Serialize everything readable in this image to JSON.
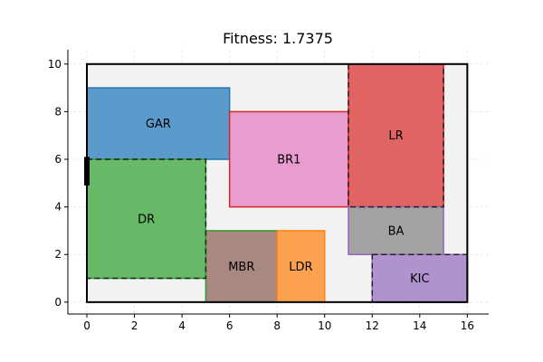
{
  "title": "Fitness: 1.7375",
  "chart_data": {
    "type": "floor-plan",
    "xlim": [
      -0.8,
      16.9
    ],
    "ylim": [
      -0.5,
      10.6
    ],
    "x_ticks": [
      0,
      2,
      4,
      6,
      8,
      10,
      12,
      14,
      16
    ],
    "y_ticks": [
      0,
      2,
      4,
      6,
      8,
      10
    ],
    "grid": true,
    "boundary": {
      "x": 0,
      "y": 0,
      "w": 16,
      "h": 10,
      "fill": "#f2f2f2"
    },
    "rooms": [
      {
        "label": "GAR",
        "x": 0,
        "y": 6,
        "w": 6,
        "h": 3,
        "fill": "#5a9bcc",
        "stroke": "#1f77b4"
      },
      {
        "label": "BR1",
        "x": 6,
        "y": 4,
        "w": 5,
        "h": 4,
        "fill": "#e89ccf",
        "stroke": "#d62728"
      },
      {
        "label": "LR",
        "x": 11,
        "y": 4,
        "w": 4,
        "h": 6,
        "fill": "#e06464",
        "stroke": "#d62728"
      },
      {
        "label": "DR",
        "x": 0,
        "y": 1,
        "w": 5,
        "h": 5,
        "fill": "#67b967",
        "stroke": "#2ca02c"
      },
      {
        "label": "BA",
        "x": 11,
        "y": 2,
        "w": 4,
        "h": 2,
        "fill": "#a3a3a3",
        "stroke": "#9467bd"
      },
      {
        "label": "MBR",
        "x": 5,
        "y": 0,
        "w": 3,
        "h": 3,
        "fill": "#a88880",
        "stroke": "#2ca02c"
      },
      {
        "label": "LDR",
        "x": 8,
        "y": 0,
        "w": 2,
        "h": 3,
        "fill": "#fba14f",
        "stroke": "#ff7f0e"
      },
      {
        "label": "KIC",
        "x": 12,
        "y": 0,
        "w": 4,
        "h": 2,
        "fill": "#b093ce",
        "stroke": "#9467bd"
      }
    ],
    "dashed_outlines": [
      {
        "x": 0,
        "y": 1,
        "w": 5,
        "h": 5
      },
      {
        "x": 11,
        "y": 4,
        "w": 4,
        "h": 6
      },
      {
        "x": 12,
        "y": 0,
        "w": 4,
        "h": 2
      }
    ],
    "entrance": {
      "x": 0,
      "y1": 4.9,
      "y2": 6.1
    }
  }
}
